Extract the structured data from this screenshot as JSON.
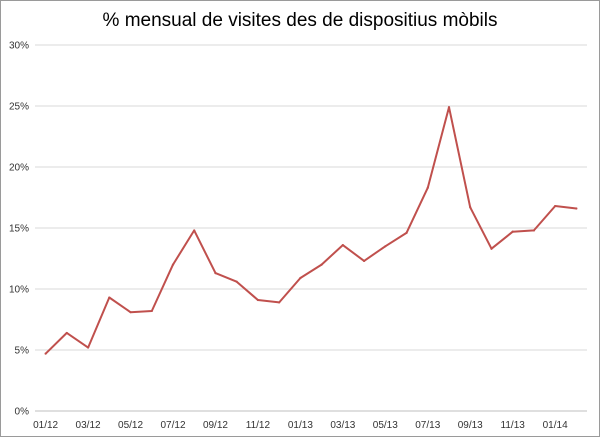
{
  "chart_data": {
    "type": "line",
    "title": "% mensual de visites des de dispositius mòbils",
    "xlabel": "",
    "ylabel": "",
    "x": [
      "01/12",
      "02/12",
      "03/12",
      "04/12",
      "05/12",
      "06/12",
      "07/12",
      "08/12",
      "09/12",
      "10/12",
      "11/12",
      "12/12",
      "01/13",
      "02/13",
      "03/13",
      "04/13",
      "05/13",
      "06/13",
      "07/13",
      "08/13",
      "09/13",
      "10/13",
      "11/13",
      "12/13",
      "01/14",
      "02/14"
    ],
    "x_tick_labels": [
      "01/12",
      "03/12",
      "05/12",
      "07/12",
      "09/12",
      "11/12",
      "01/13",
      "03/13",
      "05/13",
      "07/13",
      "09/13",
      "11/13",
      "01/14"
    ],
    "y_tick_labels": [
      "0%",
      "5%",
      "10%",
      "15%",
      "20%",
      "25%",
      "30%"
    ],
    "ylim": [
      0,
      30
    ],
    "y_unit": "%",
    "grid": "horizontal",
    "legend": "none",
    "series": [
      {
        "color": "#c0504d",
        "values": [
          4.7,
          6.4,
          5.2,
          9.3,
          8.1,
          8.2,
          12.0,
          14.8,
          11.3,
          10.6,
          9.1,
          8.9,
          10.9,
          12.0,
          13.6,
          12.3,
          13.5,
          14.6,
          18.3,
          24.9,
          16.7,
          13.3,
          14.7,
          14.8,
          16.8,
          16.6
        ]
      }
    ],
    "colors": {
      "grid": "#d9d9d9",
      "axis": "#bfbfbf",
      "line": "#c0504d"
    }
  }
}
